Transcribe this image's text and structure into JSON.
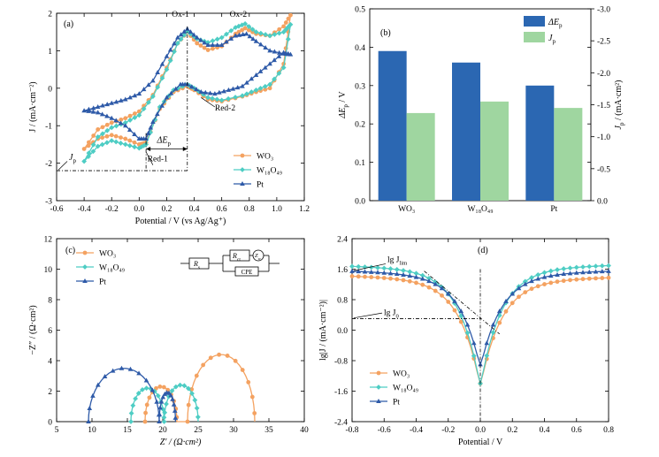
{
  "colors": {
    "wo3": "#f4a261",
    "w18o49": "#4ecdc4",
    "pt": "#2e5aa8",
    "bar1": "#2b67b2",
    "bar2": "#9fd6a0"
  },
  "chart_data": [
    {
      "type": "line",
      "panel": "(a)",
      "xlabel": "Potential / V (vs Ag/Ag⁺)",
      "ylabel": "J / (mA·cm⁻²)",
      "xlim": [
        -0.6,
        1.2
      ],
      "ylim": [
        -3,
        2
      ],
      "xticks": [
        -0.6,
        -0.4,
        -0.2,
        0.0,
        0.2,
        0.4,
        0.6,
        0.8,
        1.0,
        1.2
      ],
      "yticks": [
        -3,
        -2,
        -1,
        0,
        1,
        2
      ],
      "legend": [
        "WO₃",
        "W₁₈O₄₉",
        "Pt"
      ],
      "legend_position": "bottom-right",
      "annotations": {
        "ox1": "Ox-1",
        "ox2": "Ox-2",
        "red1": "Red-1",
        "red2": "Red-2",
        "delta_ep": "ΔE",
        "delta_ep_sub": "p",
        "jp": "J",
        "jp_sub": "p"
      },
      "series": [
        {
          "name": "WO₃",
          "forward": [
            [
              -0.4,
              -1.62
            ],
            [
              -0.3,
              -1.1
            ],
            [
              -0.2,
              -0.92
            ],
            [
              -0.1,
              -0.8
            ],
            [
              0.0,
              -0.62
            ],
            [
              0.1,
              -0.18
            ],
            [
              0.2,
              0.55
            ],
            [
              0.28,
              1.2
            ],
            [
              0.35,
              1.5
            ],
            [
              0.42,
              1.2
            ],
            [
              0.5,
              1.02
            ],
            [
              0.6,
              1.12
            ],
            [
              0.7,
              1.45
            ],
            [
              0.77,
              1.6
            ],
            [
              0.85,
              1.45
            ],
            [
              0.95,
              1.4
            ],
            [
              1.05,
              1.65
            ],
            [
              1.1,
              1.95
            ]
          ],
          "backward": [
            [
              1.1,
              1.95
            ],
            [
              1.05,
              0.65
            ],
            [
              0.95,
              0.0
            ],
            [
              0.85,
              -0.1
            ],
            [
              0.75,
              -0.22
            ],
            [
              0.6,
              -0.35
            ],
            [
              0.5,
              -0.3
            ],
            [
              0.4,
              -0.05
            ],
            [
              0.35,
              0.05
            ],
            [
              0.25,
              -0.1
            ],
            [
              0.15,
              -0.55
            ],
            [
              0.05,
              -1.45
            ],
            [
              0.0,
              -1.5
            ],
            [
              -0.1,
              -1.35
            ],
            [
              -0.2,
              -1.25
            ],
            [
              -0.3,
              -1.35
            ],
            [
              -0.4,
              -1.62
            ]
          ]
        },
        {
          "name": "W₁₈O₄₉",
          "forward": [
            [
              -0.4,
              -1.95
            ],
            [
              -0.3,
              -1.3
            ],
            [
              -0.2,
              -1.05
            ],
            [
              -0.1,
              -0.92
            ],
            [
              0.0,
              -0.72
            ],
            [
              0.1,
              -0.22
            ],
            [
              0.2,
              0.5
            ],
            [
              0.28,
              1.2
            ],
            [
              0.35,
              1.52
            ],
            [
              0.42,
              1.32
            ],
            [
              0.5,
              1.22
            ],
            [
              0.6,
              1.35
            ],
            [
              0.7,
              1.62
            ],
            [
              0.77,
              1.72
            ],
            [
              0.85,
              1.5
            ],
            [
              0.95,
              1.4
            ],
            [
              1.05,
              1.5
            ],
            [
              1.1,
              1.7
            ]
          ],
          "backward": [
            [
              1.1,
              1.7
            ],
            [
              1.05,
              0.55
            ],
            [
              0.95,
              0.1
            ],
            [
              0.85,
              -0.05
            ],
            [
              0.75,
              -0.2
            ],
            [
              0.6,
              -0.32
            ],
            [
              0.5,
              -0.25
            ],
            [
              0.4,
              0.0
            ],
            [
              0.35,
              0.1
            ],
            [
              0.25,
              -0.05
            ],
            [
              0.15,
              -0.5
            ],
            [
              0.05,
              -1.5
            ],
            [
              0.0,
              -1.6
            ],
            [
              -0.1,
              -1.5
            ],
            [
              -0.2,
              -1.4
            ],
            [
              -0.3,
              -1.55
            ],
            [
              -0.4,
              -1.95
            ]
          ]
        },
        {
          "name": "Pt",
          "forward": [
            [
              -0.4,
              -0.6
            ],
            [
              -0.3,
              -0.5
            ],
            [
              -0.2,
              -0.4
            ],
            [
              -0.1,
              -0.3
            ],
            [
              0.0,
              -0.15
            ],
            [
              0.1,
              0.2
            ],
            [
              0.2,
              0.85
            ],
            [
              0.28,
              1.35
            ],
            [
              0.35,
              1.58
            ],
            [
              0.42,
              1.35
            ],
            [
              0.5,
              1.15
            ],
            [
              0.6,
              1.15
            ],
            [
              0.7,
              1.4
            ],
            [
              0.78,
              1.45
            ],
            [
              0.85,
              1.25
            ],
            [
              0.95,
              1.0
            ],
            [
              1.05,
              0.92
            ],
            [
              1.1,
              0.9
            ]
          ],
          "backward": [
            [
              1.1,
              0.9
            ],
            [
              1.05,
              0.95
            ],
            [
              0.95,
              0.65
            ],
            [
              0.85,
              0.35
            ],
            [
              0.75,
              0.05
            ],
            [
              0.65,
              -0.05
            ],
            [
              0.55,
              -0.15
            ],
            [
              0.45,
              -0.1
            ],
            [
              0.35,
              0.1
            ],
            [
              0.3,
              0.1
            ],
            [
              0.2,
              -0.25
            ],
            [
              0.1,
              -0.9
            ],
            [
              0.05,
              -1.35
            ],
            [
              0.0,
              -1.35
            ],
            [
              -0.1,
              -1.0
            ],
            [
              -0.2,
              -0.8
            ],
            [
              -0.3,
              -0.65
            ],
            [
              -0.4,
              -0.6
            ]
          ]
        }
      ]
    },
    {
      "type": "bar",
      "panel": "(b)",
      "categories": [
        "WO₃",
        "W₁₈O₄₉",
        "Pt"
      ],
      "ylabel_left": "ΔE / V",
      "ylabel_left_sub": "p",
      "ylabel_right": "J / (mA·cm²)",
      "ylabel_right_sub": "p",
      "ylim_left": [
        0.0,
        0.5
      ],
      "ylim_right": [
        0.0,
        -3.0
      ],
      "yticks_left": [
        0.0,
        0.1,
        0.2,
        0.3,
        0.4,
        0.5
      ],
      "yticks_right": [
        0.0,
        -0.5,
        -1.0,
        -1.5,
        -2.0,
        -2.5,
        -3.0
      ],
      "legend_position": "top-right",
      "series": [
        {
          "name": "ΔE",
          "name_sub": "p",
          "axis": "left",
          "values": [
            0.39,
            0.36,
            0.3
          ]
        },
        {
          "name": "J",
          "name_sub": "p",
          "axis": "right",
          "values": [
            -1.37,
            -1.55,
            -1.45
          ]
        }
      ]
    },
    {
      "type": "scatter",
      "panel": "(c)",
      "xlabel": "Z′ / (Ω·cm²)",
      "ylabel": "−Z″ / (Ω·cm²)",
      "xlim": [
        5,
        40
      ],
      "ylim": [
        0,
        12
      ],
      "xticks": [
        5,
        10,
        15,
        20,
        25,
        30,
        35,
        40
      ],
      "yticks": [
        0,
        2,
        4,
        6,
        8,
        10,
        12
      ],
      "legend": [
        "WO₃",
        "W₁₈O₄₉",
        "Pt"
      ],
      "legend_position": "top-left",
      "circuit_labels": [
        "R",
        "s",
        "R",
        "ct",
        "Z",
        "w",
        "CPE"
      ],
      "series": [
        {
          "name": "WO₃",
          "arcs": [
            [
              17.5,
              22.0,
              2.3
            ],
            [
              23.5,
              33.0,
              4.4
            ]
          ]
        },
        {
          "name": "W₁₈O₄₉",
          "arcs": [
            [
              15.5,
              20.2,
              2.2
            ],
            [
              20.2,
              25.0,
              2.4
            ]
          ]
        },
        {
          "name": "Pt",
          "arcs": [
            [
              9.5,
              19.5,
              3.5
            ],
            [
              19.5,
              21.8,
              1.9
            ]
          ]
        }
      ]
    },
    {
      "type": "line",
      "panel": "(d)",
      "xlabel": "Potential / V",
      "ylabel": "lg|J / (mA·cm⁻²)|",
      "xlim": [
        -0.8,
        0.8
      ],
      "ylim": [
        -2.4,
        2.4
      ],
      "xticks": [
        -0.8,
        -0.6,
        -0.4,
        -0.2,
        0.0,
        0.2,
        0.4,
        0.6,
        0.8
      ],
      "yticks": [
        -2.4,
        -1.6,
        -0.8,
        0.0,
        0.8,
        1.6,
        2.4
      ],
      "legend": [
        "WO₃",
        "W₁₈O₄₉",
        "Pt"
      ],
      "legend_position": "bottom-left",
      "annotations": {
        "jlim": "lg J",
        "jlim_sub": "lim",
        "j0": "lg J",
        "j0_sub": "0"
      },
      "series": [
        {
          "name": "WO₃",
          "plateau": 1.42,
          "right_plateau": 1.38,
          "min": -1.4
        },
        {
          "name": "W₁₈O₄₉",
          "plateau": 1.68,
          "right_plateau": 1.7,
          "min": -1.4
        },
        {
          "name": "Pt",
          "plateau": 1.55,
          "right_plateau": 1.55,
          "min": -0.9
        }
      ]
    }
  ]
}
